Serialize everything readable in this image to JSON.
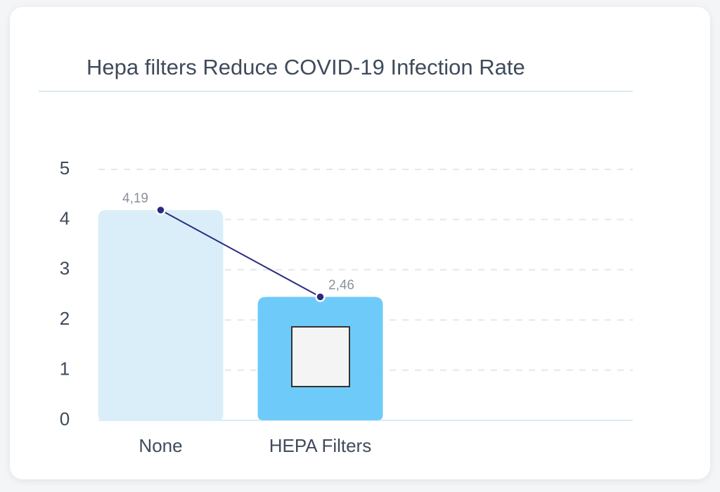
{
  "chart_data": {
    "type": "bar",
    "title": "Hepa filters Reduce COVID-19 Infection Rate",
    "categories": [
      "None",
      "HEPA Filters"
    ],
    "values": [
      4.19,
      2.46
    ],
    "value_labels": [
      "4,19",
      "2,46"
    ],
    "colors": [
      "#daeef9",
      "#6ecbf9"
    ],
    "line_color": "#2b2a7f",
    "ylim": [
      0,
      5
    ],
    "yticks": [
      0,
      1,
      2,
      3,
      4,
      5
    ],
    "grid": true
  }
}
